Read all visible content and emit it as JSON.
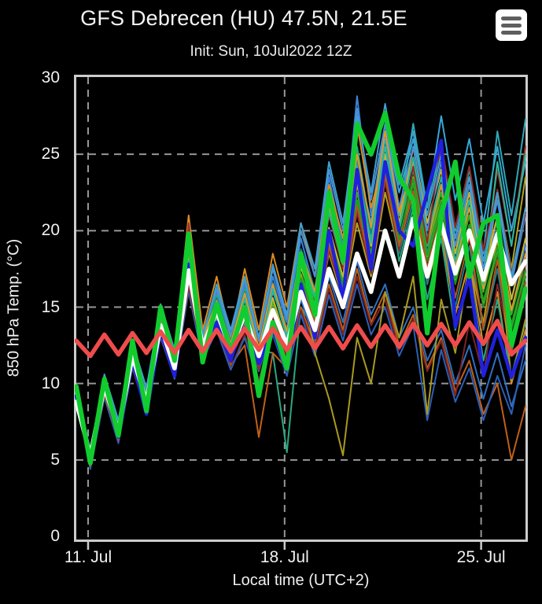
{
  "header": {
    "title": "GFS Debrecen (HU) 47.5N, 21.5E",
    "subtitle": "Init: Sun, 10Jul2022 12Z",
    "menu_icon": "hamburger-icon"
  },
  "colors": {
    "background": "#000000",
    "text": "#f0f0f0",
    "plot_border": "#cccccc",
    "grid": "#979797",
    "tick": "#cccccc",
    "menu_bg": "#ffffff",
    "menu_bars": "#5e5e5e",
    "mean": "#ffffff",
    "operational": "#11cc2e",
    "control": "#2020dd",
    "climate": "#ef4c4c"
  },
  "chart_data": {
    "type": "line",
    "title": "GFS Debrecen (HU) 47.5N, 21.5E",
    "subtitle": "Init: Sun, 10Jul2022 12Z",
    "xlabel": "Local time (UTC+2)",
    "ylabel": "850 hPa Temp. (°C)",
    "ylim": [
      0,
      30
    ],
    "yticks": [
      0,
      5,
      10,
      15,
      20,
      25,
      30
    ],
    "grid": "dashed",
    "legend": "none",
    "x_axis": {
      "start": "10 Jul 14:00",
      "end": "26 Jul 14:00",
      "span_days": 16,
      "step_days": 0.5
    },
    "xticks": [
      {
        "label": "11. Jul",
        "day": 0.42
      },
      {
        "label": "18. Jul",
        "day": 7.42
      },
      {
        "label": "25. Jul",
        "day": 14.42
      }
    ],
    "highlighted_series": [
      {
        "role": "control",
        "color_key": "control",
        "width": 4.5,
        "values": [
          9.2,
          5.0,
          9.8,
          6.5,
          11.5,
          8.0,
          13.5,
          10.5,
          17.8,
          12.0,
          14.0,
          11.5,
          14.5,
          11.3,
          13.5,
          11.0,
          16.5,
          13.0,
          20.0,
          15.5,
          24.0,
          17.5,
          24.5,
          20.0,
          19.0,
          22.5,
          25.9,
          13.7,
          17.0,
          10.5,
          13.5,
          10.4,
          13.0
        ]
      },
      {
        "role": "ensemble-mean",
        "color_key": "mean",
        "width": 5.5,
        "values": [
          8.8,
          5.3,
          9.8,
          6.9,
          11.8,
          8.8,
          13.8,
          11.0,
          17.4,
          12.4,
          14.7,
          12.2,
          14.5,
          11.8,
          14.8,
          12.5,
          16.0,
          13.5,
          17.5,
          15.0,
          18.5,
          16.0,
          20.0,
          17.0,
          20.8,
          17.0,
          20.5,
          17.2,
          20.0,
          16.8,
          19.8,
          16.5,
          18.0
        ]
      },
      {
        "role": "operational",
        "color_key": "operational",
        "width": 6,
        "values": [
          9.8,
          4.8,
          10.3,
          6.6,
          12.8,
          8.2,
          15.0,
          11.5,
          19.8,
          11.4,
          15.2,
          12.1,
          15.0,
          9.2,
          14.0,
          11.0,
          18.5,
          14.5,
          22.5,
          18.0,
          27.0,
          25.0,
          27.7,
          23.5,
          22.0,
          13.3,
          21.0,
          24.5,
          17.0,
          20.5,
          21.0,
          12.5,
          16.2
        ]
      },
      {
        "role": "climate-mean",
        "color_key": "climate",
        "width": 5.5,
        "values": [
          12.8,
          11.8,
          13.2,
          11.9,
          13.3,
          12.0,
          13.4,
          12.0,
          13.5,
          12.1,
          13.5,
          12.1,
          13.6,
          12.2,
          13.6,
          12.2,
          13.7,
          12.3,
          13.7,
          12.3,
          13.8,
          12.4,
          13.8,
          12.4,
          13.9,
          12.5,
          13.9,
          12.5,
          14.0,
          12.6,
          14.1,
          11.9,
          12.8
        ]
      }
    ],
    "members": [
      {
        "color": "#3b82d8",
        "values": [
          9.5,
          5.0,
          10.0,
          7.0,
          12.5,
          9.0,
          14.5,
          11.5,
          18.5,
          13.0,
          16.0,
          13.0,
          16.5,
          12.5,
          17.0,
          14.0,
          19.5,
          16.0,
          23.5,
          19.0,
          28.8,
          21.0,
          26.5,
          20.0,
          24.0,
          18.5,
          23.0,
          17.5,
          22.0,
          16.0,
          21.0,
          15.5,
          19.0
        ]
      },
      {
        "color": "#35a7d8",
        "values": [
          9.6,
          5.2,
          10.2,
          7.2,
          12.0,
          9.2,
          14.0,
          11.2,
          17.0,
          12.8,
          15.5,
          12.5,
          15.5,
          12.0,
          16.0,
          13.5,
          18.0,
          15.5,
          21.0,
          18.0,
          24.5,
          20.5,
          27.0,
          22.5,
          26.0,
          21.5,
          27.5,
          22.0,
          26.0,
          20.5,
          25.5,
          20.0,
          24.5
        ]
      },
      {
        "color": "#dc8c1e",
        "values": [
          9.4,
          5.0,
          9.8,
          6.8,
          12.2,
          9.5,
          15.0,
          12.0,
          21.0,
          13.5,
          17.0,
          13.0,
          17.5,
          13.5,
          18.5,
          15.0,
          20.5,
          17.0,
          23.0,
          19.5,
          27.0,
          21.5,
          25.0,
          19.0,
          22.5,
          16.5,
          20.0,
          14.5,
          18.0,
          12.5,
          16.0,
          10.0,
          13.5
        ]
      },
      {
        "color": "#b3a11f",
        "values": [
          9.3,
          4.9,
          9.5,
          6.5,
          11.5,
          8.5,
          13.0,
          10.5,
          16.5,
          12.0,
          14.0,
          11.5,
          14.0,
          11.0,
          14.5,
          12.0,
          16.5,
          14.0,
          18.5,
          15.5,
          20.5,
          17.0,
          22.5,
          18.5,
          23.5,
          19.0,
          22.0,
          17.5,
          21.0,
          16.0,
          22.5,
          17.5,
          23.5
        ]
      },
      {
        "color": "#9b3030",
        "values": [
          9.2,
          4.8,
          9.3,
          6.3,
          11.2,
          8.2,
          13.5,
          10.8,
          20.5,
          12.5,
          15.0,
          12.0,
          15.5,
          12.5,
          16.5,
          13.5,
          18.5,
          15.5,
          21.0,
          17.5,
          23.0,
          19.0,
          24.5,
          20.0,
          25.5,
          20.5,
          24.0,
          19.0,
          22.5,
          17.5,
          24.0,
          19.0,
          25.5
        ]
      },
      {
        "color": "#2aa882",
        "values": [
          9.7,
          5.4,
          10.4,
          7.4,
          12.4,
          9.4,
          14.8,
          11.8,
          17.8,
          12.8,
          15.8,
          12.8,
          16.2,
          12.2,
          12.0,
          5.5,
          15.0,
          13.5,
          19.0,
          16.5,
          25.5,
          20.0,
          24.0,
          18.0,
          21.5,
          15.5,
          19.5,
          13.5,
          17.5,
          11.5,
          15.5,
          10.5,
          14.0
        ]
      },
      {
        "color": "#1e8c1e",
        "values": [
          9.5,
          5.1,
          10.0,
          7.0,
          12.0,
          9.0,
          14.2,
          11.4,
          16.8,
          12.2,
          14.4,
          11.8,
          14.8,
          11.2,
          15.2,
          12.2,
          17.0,
          14.5,
          19.5,
          16.5,
          22.0,
          18.0,
          24.0,
          19.5,
          23.0,
          18.0,
          21.5,
          16.5,
          20.0,
          15.0,
          18.5,
          13.5,
          17.0
        ]
      },
      {
        "color": "#2f6fc4",
        "values": [
          9.4,
          4.6,
          9.6,
          6.6,
          11.6,
          8.6,
          13.6,
          10.9,
          17.2,
          12.0,
          14.2,
          11.5,
          13.8,
          10.8,
          14.0,
          11.5,
          15.5,
          12.8,
          17.0,
          14.0,
          18.0,
          14.5,
          16.5,
          13.0,
          15.0,
          11.5,
          13.5,
          10.0,
          12.5,
          9.0,
          12.0,
          8.5,
          11.5
        ]
      },
      {
        "color": "#c06018",
        "values": [
          9.3,
          4.7,
          9.4,
          6.4,
          11.4,
          8.4,
          13.2,
          10.6,
          16.2,
          11.8,
          13.8,
          11.2,
          12.5,
          6.5,
          12.0,
          11.0,
          15.0,
          12.5,
          16.5,
          13.5,
          17.5,
          14.0,
          16.0,
          12.5,
          14.5,
          11.0,
          13.0,
          9.5,
          11.5,
          8.0,
          10.0,
          5.0,
          8.5
        ]
      },
      {
        "color": "#2fa8b8",
        "values": [
          9.6,
          5.3,
          10.1,
          7.1,
          12.1,
          9.1,
          14.4,
          11.6,
          17.6,
          12.6,
          15.2,
          12.4,
          15.8,
          12.0,
          16.4,
          13.2,
          18.5,
          15.8,
          21.5,
          18.0,
          24.0,
          19.5,
          26.0,
          21.0,
          27.0,
          21.5,
          25.5,
          20.0,
          24.0,
          18.5,
          26.5,
          21.0,
          27.3
        ]
      },
      {
        "color": "#2fae2f",
        "values": [
          9.5,
          5.0,
          9.9,
          6.9,
          11.9,
          8.9,
          14.0,
          11.2,
          17.0,
          12.3,
          14.6,
          12.0,
          14.9,
          11.5,
          15.3,
          12.4,
          17.2,
          14.6,
          19.8,
          16.8,
          22.5,
          18.5,
          24.5,
          20.0,
          24.0,
          19.0,
          22.5,
          17.5,
          21.0,
          16.0,
          19.5,
          14.5,
          18.0
        ]
      },
      {
        "color": "#c9b830",
        "values": [
          9.4,
          4.9,
          9.7,
          6.7,
          11.7,
          8.7,
          13.9,
          11.1,
          17.3,
          12.4,
          14.8,
          12.1,
          15.1,
          11.7,
          15.6,
          12.6,
          17.6,
          15.0,
          20.2,
          17.0,
          23.0,
          19.0,
          25.0,
          20.5,
          25.5,
          20.5,
          24.0,
          18.5,
          22.5,
          17.0,
          21.0,
          15.5,
          19.5
        ]
      },
      {
        "color": "#4a90d9",
        "values": [
          9.7,
          5.5,
          10.5,
          7.5,
          12.6,
          9.6,
          15.2,
          12.2,
          18.8,
          13.2,
          16.2,
          13.2,
          16.8,
          12.8,
          17.5,
          14.2,
          20.0,
          17.0,
          24.0,
          20.0,
          28.0,
          22.0,
          27.0,
          21.5,
          25.5,
          20.0,
          24.5,
          19.0,
          23.0,
          17.5,
          22.0,
          16.5,
          21.0
        ]
      },
      {
        "color": "#1f7d8c",
        "values": [
          9.5,
          5.2,
          10.3,
          7.3,
          12.3,
          9.3,
          14.6,
          11.7,
          17.7,
          12.7,
          15.6,
          12.7,
          16.0,
          12.1,
          16.6,
          13.6,
          18.8,
          16.2,
          21.8,
          18.2,
          24.8,
          19.8,
          23.5,
          18.5,
          22.0,
          16.5,
          20.5,
          15.0,
          19.0,
          13.5,
          17.5,
          12.0,
          16.0
        ]
      },
      {
        "color": "#7d2424",
        "values": [
          9.2,
          4.5,
          9.2,
          6.2,
          11.0,
          8.0,
          13.0,
          10.4,
          16.0,
          11.6,
          13.6,
          11.0,
          13.2,
          10.2,
          13.5,
          10.8,
          14.8,
          12.2,
          16.2,
          13.2,
          17.0,
          13.8,
          15.5,
          12.2,
          14.2,
          10.8,
          12.8,
          9.2,
          14.0,
          10.5,
          16.5,
          12.0,
          18.0
        ]
      },
      {
        "color": "#e09a28",
        "values": [
          9.6,
          5.1,
          10.0,
          7.0,
          12.2,
          9.2,
          14.6,
          11.8,
          18.2,
          12.9,
          15.4,
          12.6,
          15.9,
          12.3,
          16.5,
          13.4,
          18.6,
          16.0,
          21.6,
          18.4,
          25.0,
          20.2,
          26.5,
          21.2,
          24.5,
          19.2,
          23.0,
          17.8,
          21.5,
          16.2,
          20.0,
          14.8,
          18.5
        ]
      },
      {
        "color": "#69b32a",
        "values": [
          9.4,
          4.8,
          9.6,
          6.6,
          11.6,
          8.6,
          13.7,
          11.0,
          16.6,
          12.1,
          14.3,
          11.7,
          14.6,
          11.1,
          15.0,
          12.1,
          16.8,
          14.3,
          19.2,
          16.3,
          21.8,
          17.8,
          23.8,
          19.3,
          23.3,
          18.3,
          21.8,
          16.8,
          20.3,
          15.3,
          18.8,
          13.8,
          17.3
        ]
      },
      {
        "color": "#2b5fb8",
        "values": [
          9.3,
          4.4,
          9.1,
          6.1,
          11.1,
          8.1,
          13.1,
          10.3,
          16.1,
          11.5,
          13.5,
          10.9,
          13.0,
          10.0,
          13.2,
          10.5,
          14.5,
          11.8,
          15.8,
          12.8,
          16.5,
          13.2,
          15.0,
          11.8,
          13.8,
          7.6,
          12.2,
          8.8,
          11.0,
          7.6,
          10.5,
          8.0,
          12.5
        ]
      },
      {
        "color": "#28b89a",
        "values": [
          9.6,
          5.4,
          10.2,
          7.2,
          12.2,
          9.2,
          14.5,
          11.6,
          17.5,
          12.5,
          15.0,
          12.3,
          15.5,
          11.9,
          16.2,
          13.0,
          18.2,
          15.6,
          21.2,
          17.8,
          24.2,
          19.2,
          25.5,
          20.2,
          24.8,
          19.5,
          23.5,
          18.0,
          22.0,
          16.5,
          24.5,
          19.0,
          25.0
        ]
      },
      {
        "color": "#8c2a2a",
        "values": [
          9.3,
          4.7,
          9.5,
          6.5,
          11.3,
          8.3,
          13.3,
          10.7,
          16.4,
          11.9,
          14.0,
          11.4,
          14.2,
          10.9,
          14.4,
          11.7,
          16.2,
          13.7,
          18.7,
          15.7,
          21.2,
          17.2,
          23.2,
          18.7,
          24.2,
          19.2,
          25.8,
          20.2,
          24.2,
          18.7,
          22.7,
          17.2,
          21.2
        ]
      },
      {
        "color": "#a89a20",
        "values": [
          9.5,
          5.0,
          9.8,
          6.8,
          11.8,
          8.8,
          14.1,
          11.3,
          17.1,
          12.2,
          14.5,
          11.9,
          14.7,
          11.3,
          15.1,
          12.3,
          17.1,
          12.0,
          9.0,
          5.3,
          13.0,
          10.0,
          16.0,
          13.0,
          17.0,
          8.0,
          15.5,
          12.0,
          18.0,
          14.0,
          19.5,
          10.2,
          14.2
        ]
      },
      {
        "color": "#3f9fd0",
        "values": [
          9.7,
          5.6,
          10.6,
          7.6,
          12.7,
          9.7,
          15.0,
          12.0,
          18.0,
          13.0,
          16.5,
          13.5,
          17.0,
          13.0,
          17.8,
          14.5,
          20.5,
          17.5,
          24.5,
          20.5,
          27.5,
          22.5,
          28.3,
          23.0,
          26.5,
          21.0,
          25.0,
          19.5,
          23.5,
          18.0,
          22.5,
          17.0,
          21.5
        ]
      },
      {
        "color": "#1fa01f",
        "values": [
          9.4,
          4.9,
          9.7,
          6.7,
          11.7,
          8.7,
          13.8,
          11.1,
          16.9,
          12.2,
          14.4,
          11.8,
          14.7,
          11.2,
          15.0,
          12.2,
          16.9,
          14.4,
          19.4,
          16.4,
          22.0,
          18.0,
          24.0,
          19.4,
          23.4,
          18.4,
          21.9,
          16.9,
          20.4,
          15.4,
          18.9,
          13.9,
          17.4
        ]
      },
      {
        "color": "#b5541c",
        "values": [
          9.2,
          4.6,
          9.3,
          6.3,
          11.2,
          8.2,
          13.4,
          10.8,
          17.8,
          12.2,
          14.6,
          11.6,
          14.4,
          11.2,
          14.8,
          12.0,
          16.6,
          14.0,
          19.0,
          16.0,
          21.6,
          17.6,
          23.6,
          19.0,
          22.6,
          17.6,
          21.1,
          15.6,
          19.6,
          13.6,
          18.1,
          12.1,
          16.6
        ]
      }
    ]
  }
}
